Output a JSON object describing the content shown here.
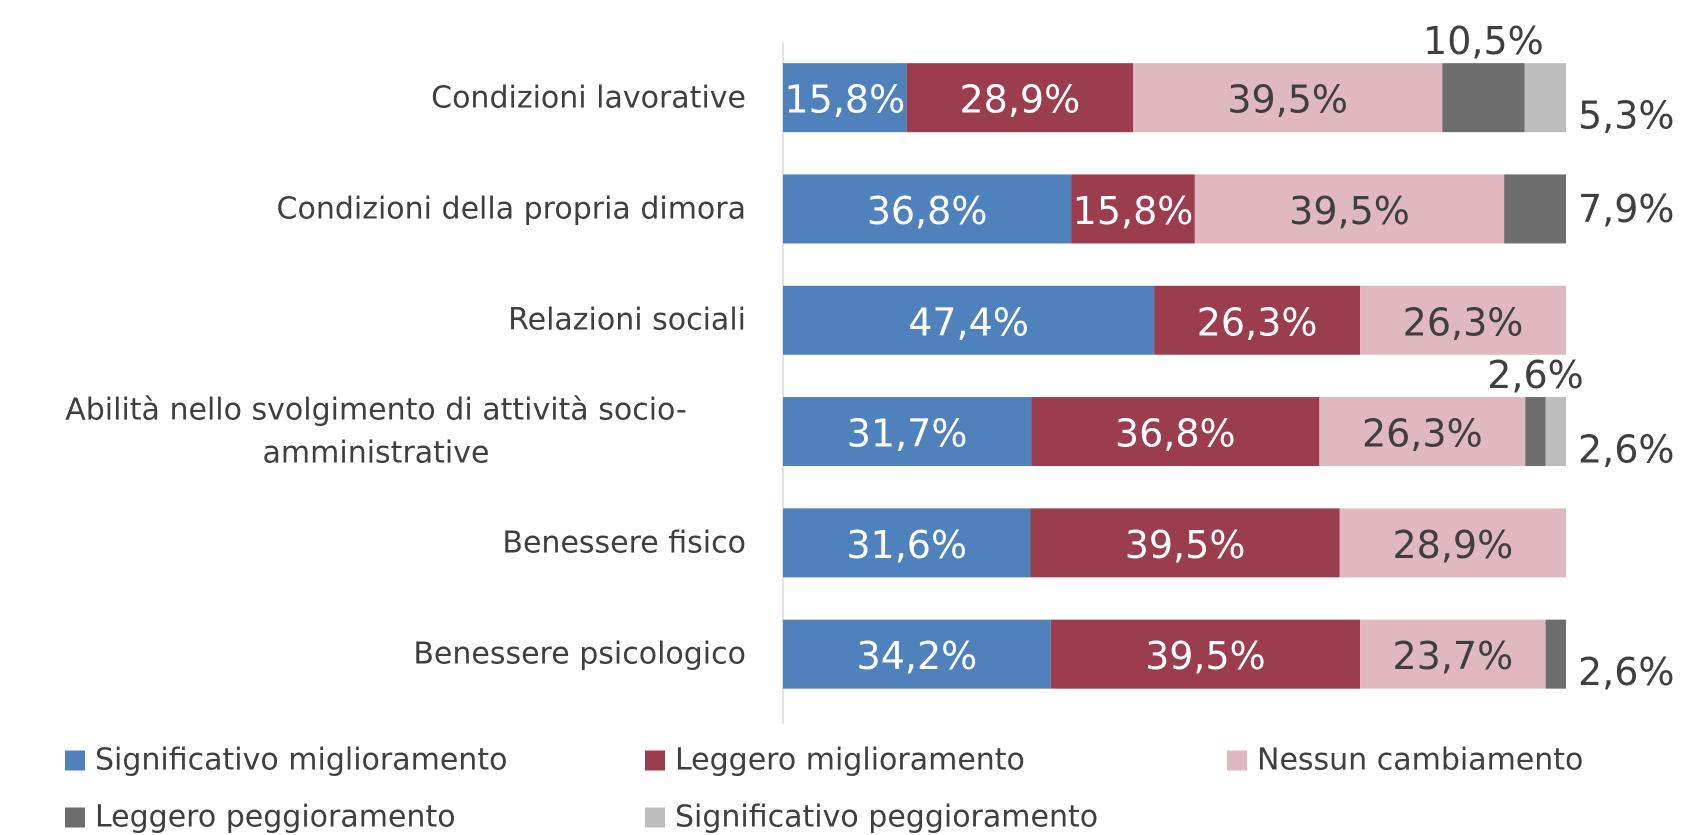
{
  "chart_data": {
    "type": "stacked-barh",
    "categories": [
      "Condizioni lavorative",
      "Condizioni della propria dimora",
      "Relazioni sociali",
      "Abilità nello svolgimento di attività socio-amministrative",
      "Benessere fisico",
      "Benessere psicologico"
    ],
    "xlim": [
      0,
      100
    ],
    "series": [
      {
        "name": "Significativo miglioramento",
        "color": "#4f81bd",
        "values": [
          15.8,
          36.8,
          47.4,
          31.7,
          31.6,
          34.2
        ],
        "value_labels": [
          "15,8%",
          "36,8%",
          "47,4%",
          "31,7%",
          "31,6%",
          "34,2%"
        ]
      },
      {
        "name": "Leggero miglioramento",
        "color": "#9b3d4d",
        "values": [
          28.9,
          15.8,
          26.3,
          36.8,
          39.5,
          39.5
        ],
        "value_labels": [
          "28,9%",
          "15,8%",
          "26,3%",
          "36,8%",
          "39,5%",
          "39,5%"
        ]
      },
      {
        "name": "Nessun cambiamento",
        "color": "#e0b8bf",
        "values": [
          39.5,
          39.5,
          26.3,
          26.3,
          28.9,
          23.7
        ],
        "value_labels": [
          "39,5%",
          "39,5%",
          "26,3%",
          "26,3%",
          "28,9%",
          "23,7%"
        ]
      },
      {
        "name": "Leggero peggioramento",
        "color": "#6d6d6d",
        "values": [
          10.5,
          7.9,
          null,
          2.6,
          null,
          2.6
        ],
        "value_labels": [
          "10,5%",
          "7,9%",
          null,
          "2,6%",
          null,
          "2,6%"
        ]
      },
      {
        "name": "Significativo peggioramento",
        "color": "#bdbdbd",
        "values": [
          5.3,
          null,
          null,
          2.6,
          null,
          null
        ],
        "value_labels": [
          "5,3%",
          null,
          null,
          "2,6%",
          null,
          null
        ]
      }
    ]
  }
}
